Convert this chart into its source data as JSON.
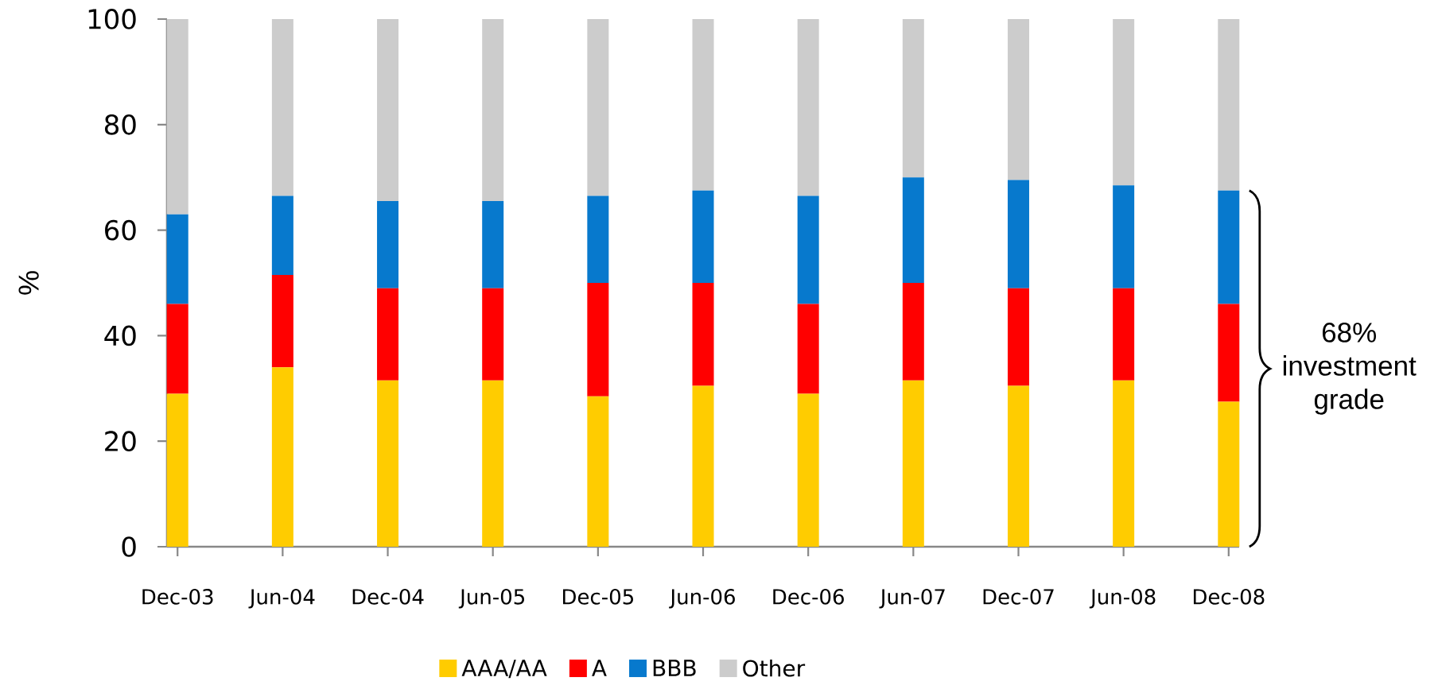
{
  "chart_data": {
    "type": "bar",
    "stacked": true,
    "ylabel": "%",
    "categories": [
      "Dec-03",
      "Jun-04",
      "Dec-04",
      "Jun-05",
      "Dec-05",
      "Jun-06",
      "Dec-06",
      "Jun-07",
      "Dec-07",
      "Jun-08",
      "Dec-08"
    ],
    "series": [
      {
        "name": "AAA/AA",
        "color": "#ffcc00",
        "values": [
          29,
          34,
          31.5,
          31.5,
          28.5,
          30.5,
          29,
          31.5,
          30.5,
          31.5,
          27.5
        ]
      },
      {
        "name": "A",
        "color": "#ff0000",
        "values": [
          17,
          17.5,
          17.5,
          17.5,
          21.5,
          19.5,
          17,
          18.5,
          18.5,
          17.5,
          18.5
        ]
      },
      {
        "name": "BBB",
        "color": "#0779cd",
        "values": [
          17,
          15,
          16.5,
          16.5,
          16.5,
          17.5,
          20.5,
          20,
          20.5,
          19.5,
          21.5
        ]
      },
      {
        "name": "Other",
        "color": "#cccccc",
        "values": [
          37,
          33.5,
          34.5,
          34.5,
          33.5,
          32.5,
          33.5,
          30,
          30.5,
          31.5,
          32.5
        ]
      }
    ],
    "ylim": [
      0,
      100
    ],
    "yticks": [
      0,
      20,
      40,
      60,
      80,
      100
    ],
    "legend": "bottom",
    "annotations": [
      "68% investment grade"
    ]
  }
}
